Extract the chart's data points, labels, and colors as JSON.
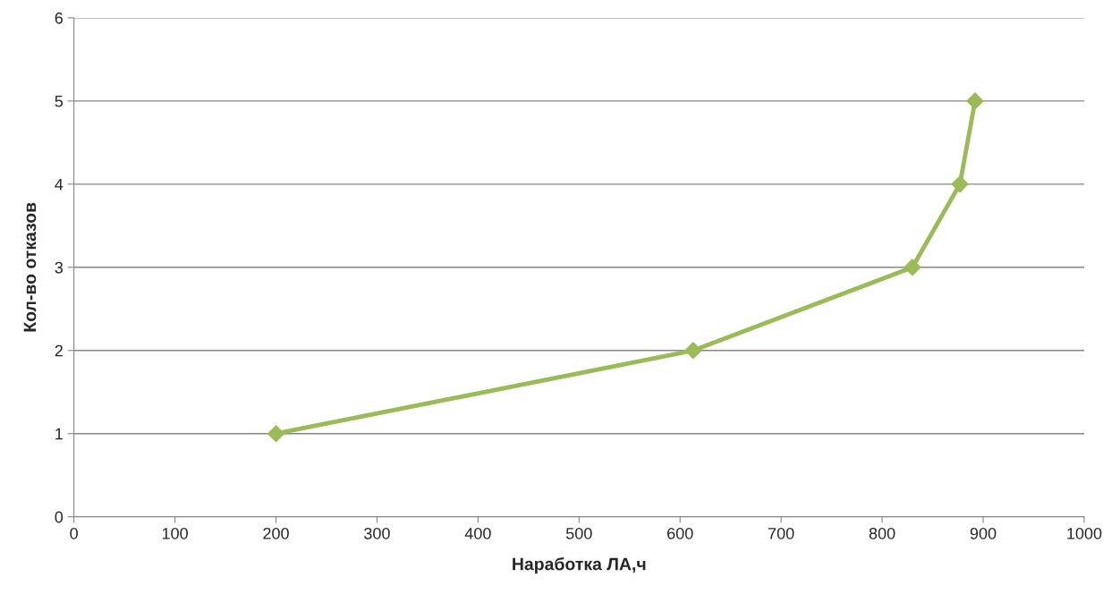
{
  "chart_data": {
    "type": "line",
    "xlabel": "Наработка ЛА,ч",
    "ylabel": "Кол-во отказов",
    "x": [
      200,
      613,
      830,
      877,
      892
    ],
    "series": [
      {
        "color": "#9bbb59",
        "values": [
          1,
          2,
          3,
          4,
          5
        ]
      }
    ],
    "xlim": [
      0,
      1000
    ],
    "xticks": [
      0,
      100,
      200,
      300,
      400,
      500,
      600,
      700,
      800,
      900,
      1000
    ],
    "ylim": [
      0,
      6
    ],
    "yticks": [
      0,
      1,
      2,
      3,
      4,
      5,
      6
    ],
    "grid": "y",
    "marker": "diamond",
    "line_style": "solid"
  }
}
